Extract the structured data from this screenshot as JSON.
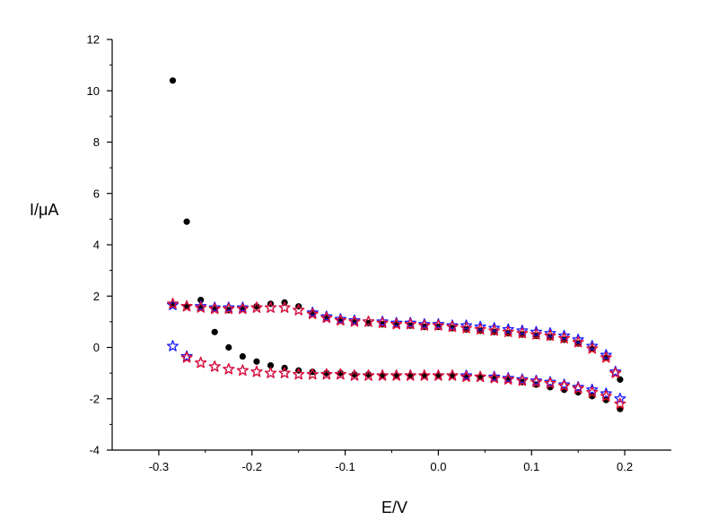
{
  "chart_data": {
    "type": "scatter",
    "title": "",
    "xlabel": "E/V",
    "ylabel": "I/μA",
    "xlim": [
      -0.35,
      0.25
    ],
    "ylim": [
      -4,
      12
    ],
    "xticks": [
      -0.3,
      -0.2,
      -0.1,
      0.0,
      0.1,
      0.2
    ],
    "xtick_labels": [
      "-0.3",
      "-0.2",
      "-0.1",
      "0.0",
      "0.1",
      "0.2"
    ],
    "yticks": [
      -4,
      -2,
      0,
      2,
      4,
      6,
      8,
      10,
      12
    ],
    "ytick_labels": [
      "-4",
      "-2",
      "0",
      "2",
      "4",
      "6",
      "8",
      "10",
      "12"
    ],
    "grid": false,
    "legend": "none",
    "series": [
      {
        "marker": "circle",
        "color": "#000000",
        "points": [
          [
            -0.285,
            10.4
          ],
          [
            -0.27,
            4.9
          ],
          [
            -0.255,
            1.85
          ],
          [
            -0.24,
            0.6
          ],
          [
            -0.225,
            0.0
          ],
          [
            -0.21,
            -0.35
          ],
          [
            -0.195,
            -0.55
          ],
          [
            -0.18,
            -0.7
          ],
          [
            -0.165,
            -0.8
          ],
          [
            -0.15,
            -0.9
          ],
          [
            -0.135,
            -0.95
          ],
          [
            -0.12,
            -1.0
          ],
          [
            -0.105,
            -1.0
          ],
          [
            -0.09,
            -1.05
          ],
          [
            -0.075,
            -1.05
          ],
          [
            -0.06,
            -1.1
          ],
          [
            -0.045,
            -1.1
          ],
          [
            -0.03,
            -1.1
          ],
          [
            -0.015,
            -1.1
          ],
          [
            0.0,
            -1.1
          ],
          [
            0.015,
            -1.1
          ],
          [
            0.03,
            -1.15
          ],
          [
            0.045,
            -1.15
          ],
          [
            0.06,
            -1.2
          ],
          [
            0.075,
            -1.25
          ],
          [
            0.09,
            -1.35
          ],
          [
            0.105,
            -1.45
          ],
          [
            0.12,
            -1.55
          ],
          [
            0.135,
            -1.65
          ],
          [
            0.15,
            -1.75
          ],
          [
            0.165,
            -1.9
          ],
          [
            0.18,
            -2.05
          ],
          [
            0.195,
            -2.4
          ],
          [
            0.195,
            -1.25
          ],
          [
            0.18,
            -0.4
          ],
          [
            0.165,
            -0.05
          ],
          [
            0.15,
            0.15
          ],
          [
            0.135,
            0.3
          ],
          [
            0.12,
            0.4
          ],
          [
            0.105,
            0.45
          ],
          [
            0.09,
            0.5
          ],
          [
            0.075,
            0.55
          ],
          [
            0.06,
            0.6
          ],
          [
            0.045,
            0.65
          ],
          [
            0.03,
            0.7
          ],
          [
            0.015,
            0.75
          ],
          [
            0.0,
            0.8
          ],
          [
            -0.015,
            0.8
          ],
          [
            -0.03,
            0.85
          ],
          [
            -0.045,
            0.9
          ],
          [
            -0.06,
            0.9
          ],
          [
            -0.075,
            0.95
          ],
          [
            -0.09,
            1.0
          ],
          [
            -0.105,
            1.05
          ],
          [
            -0.12,
            1.15
          ],
          [
            -0.135,
            1.35
          ],
          [
            -0.15,
            1.6
          ],
          [
            -0.165,
            1.75
          ],
          [
            -0.18,
            1.7
          ],
          [
            -0.195,
            1.6
          ],
          [
            -0.21,
            1.5
          ],
          [
            -0.225,
            1.45
          ],
          [
            -0.24,
            1.5
          ],
          [
            -0.255,
            1.55
          ],
          [
            -0.27,
            1.6
          ],
          [
            -0.285,
            1.65
          ]
        ]
      },
      {
        "marker": "star",
        "color": "#1a1aff",
        "points": [
          [
            -0.285,
            0.05
          ],
          [
            -0.27,
            -0.35
          ],
          [
            -0.255,
            -0.6
          ],
          [
            -0.24,
            -0.75
          ],
          [
            -0.225,
            -0.85
          ],
          [
            -0.21,
            -0.9
          ],
          [
            -0.195,
            -0.95
          ],
          [
            -0.18,
            -1.0
          ],
          [
            -0.165,
            -1.0
          ],
          [
            -0.15,
            -1.05
          ],
          [
            -0.135,
            -1.05
          ],
          [
            -0.12,
            -1.05
          ],
          [
            -0.105,
            -1.05
          ],
          [
            -0.09,
            -1.1
          ],
          [
            -0.075,
            -1.1
          ],
          [
            -0.06,
            -1.1
          ],
          [
            -0.045,
            -1.1
          ],
          [
            -0.03,
            -1.1
          ],
          [
            -0.015,
            -1.1
          ],
          [
            0.0,
            -1.1
          ],
          [
            0.015,
            -1.1
          ],
          [
            0.03,
            -1.1
          ],
          [
            0.045,
            -1.15
          ],
          [
            0.06,
            -1.15
          ],
          [
            0.075,
            -1.2
          ],
          [
            0.09,
            -1.25
          ],
          [
            0.105,
            -1.3
          ],
          [
            0.12,
            -1.35
          ],
          [
            0.135,
            -1.45
          ],
          [
            0.15,
            -1.55
          ],
          [
            0.165,
            -1.65
          ],
          [
            0.18,
            -1.8
          ],
          [
            0.195,
            -2.0
          ],
          [
            0.19,
            -0.95
          ],
          [
            0.18,
            -0.3
          ],
          [
            0.165,
            0.05
          ],
          [
            0.15,
            0.3
          ],
          [
            0.135,
            0.45
          ],
          [
            0.12,
            0.55
          ],
          [
            0.105,
            0.6
          ],
          [
            0.09,
            0.65
          ],
          [
            0.075,
            0.7
          ],
          [
            0.06,
            0.75
          ],
          [
            0.045,
            0.8
          ],
          [
            0.03,
            0.85
          ],
          [
            0.015,
            0.85
          ],
          [
            0.0,
            0.9
          ],
          [
            -0.015,
            0.9
          ],
          [
            -0.03,
            0.95
          ],
          [
            -0.045,
            0.95
          ],
          [
            -0.06,
            1.0
          ],
          [
            -0.075,
            1.0
          ],
          [
            -0.09,
            1.05
          ],
          [
            -0.105,
            1.1
          ],
          [
            -0.12,
            1.2
          ],
          [
            -0.135,
            1.35
          ],
          [
            -0.15,
            1.45
          ],
          [
            -0.165,
            1.55
          ],
          [
            -0.18,
            1.55
          ],
          [
            -0.195,
            1.55
          ],
          [
            -0.21,
            1.55
          ],
          [
            -0.225,
            1.55
          ],
          [
            -0.24,
            1.55
          ],
          [
            -0.255,
            1.6
          ],
          [
            -0.27,
            1.6
          ],
          [
            -0.285,
            1.65
          ]
        ]
      },
      {
        "marker": "star",
        "color": "#e8112d",
        "points": [
          [
            -0.27,
            -0.4
          ],
          [
            -0.255,
            -0.6
          ],
          [
            -0.24,
            -0.75
          ],
          [
            -0.225,
            -0.85
          ],
          [
            -0.21,
            -0.9
          ],
          [
            -0.195,
            -0.95
          ],
          [
            -0.18,
            -1.0
          ],
          [
            -0.165,
            -1.0
          ],
          [
            -0.15,
            -1.05
          ],
          [
            -0.135,
            -1.05
          ],
          [
            -0.12,
            -1.05
          ],
          [
            -0.105,
            -1.05
          ],
          [
            -0.09,
            -1.1
          ],
          [
            -0.075,
            -1.1
          ],
          [
            -0.06,
            -1.1
          ],
          [
            -0.045,
            -1.1
          ],
          [
            -0.03,
            -1.1
          ],
          [
            -0.015,
            -1.1
          ],
          [
            0.0,
            -1.1
          ],
          [
            0.015,
            -1.1
          ],
          [
            0.03,
            -1.15
          ],
          [
            0.045,
            -1.15
          ],
          [
            0.06,
            -1.2
          ],
          [
            0.075,
            -1.25
          ],
          [
            0.09,
            -1.3
          ],
          [
            0.105,
            -1.35
          ],
          [
            0.12,
            -1.4
          ],
          [
            0.135,
            -1.5
          ],
          [
            0.15,
            -1.6
          ],
          [
            0.165,
            -1.75
          ],
          [
            0.18,
            -1.9
          ],
          [
            0.195,
            -2.2
          ],
          [
            0.19,
            -1.0
          ],
          [
            0.18,
            -0.4
          ],
          [
            0.165,
            -0.05
          ],
          [
            0.15,
            0.2
          ],
          [
            0.135,
            0.35
          ],
          [
            0.12,
            0.45
          ],
          [
            0.105,
            0.5
          ],
          [
            0.09,
            0.55
          ],
          [
            0.075,
            0.6
          ],
          [
            0.06,
            0.65
          ],
          [
            0.045,
            0.7
          ],
          [
            0.03,
            0.75
          ],
          [
            0.015,
            0.8
          ],
          [
            0.0,
            0.85
          ],
          [
            -0.015,
            0.85
          ],
          [
            -0.03,
            0.9
          ],
          [
            -0.045,
            0.9
          ],
          [
            -0.06,
            0.95
          ],
          [
            -0.075,
            1.0
          ],
          [
            -0.09,
            1.0
          ],
          [
            -0.105,
            1.05
          ],
          [
            -0.12,
            1.15
          ],
          [
            -0.135,
            1.3
          ],
          [
            -0.15,
            1.45
          ],
          [
            -0.165,
            1.55
          ],
          [
            -0.18,
            1.55
          ],
          [
            -0.195,
            1.55
          ],
          [
            -0.21,
            1.5
          ],
          [
            -0.225,
            1.5
          ],
          [
            -0.24,
            1.5
          ],
          [
            -0.255,
            1.55
          ],
          [
            -0.27,
            1.6
          ],
          [
            -0.285,
            1.7
          ]
        ]
      }
    ]
  }
}
